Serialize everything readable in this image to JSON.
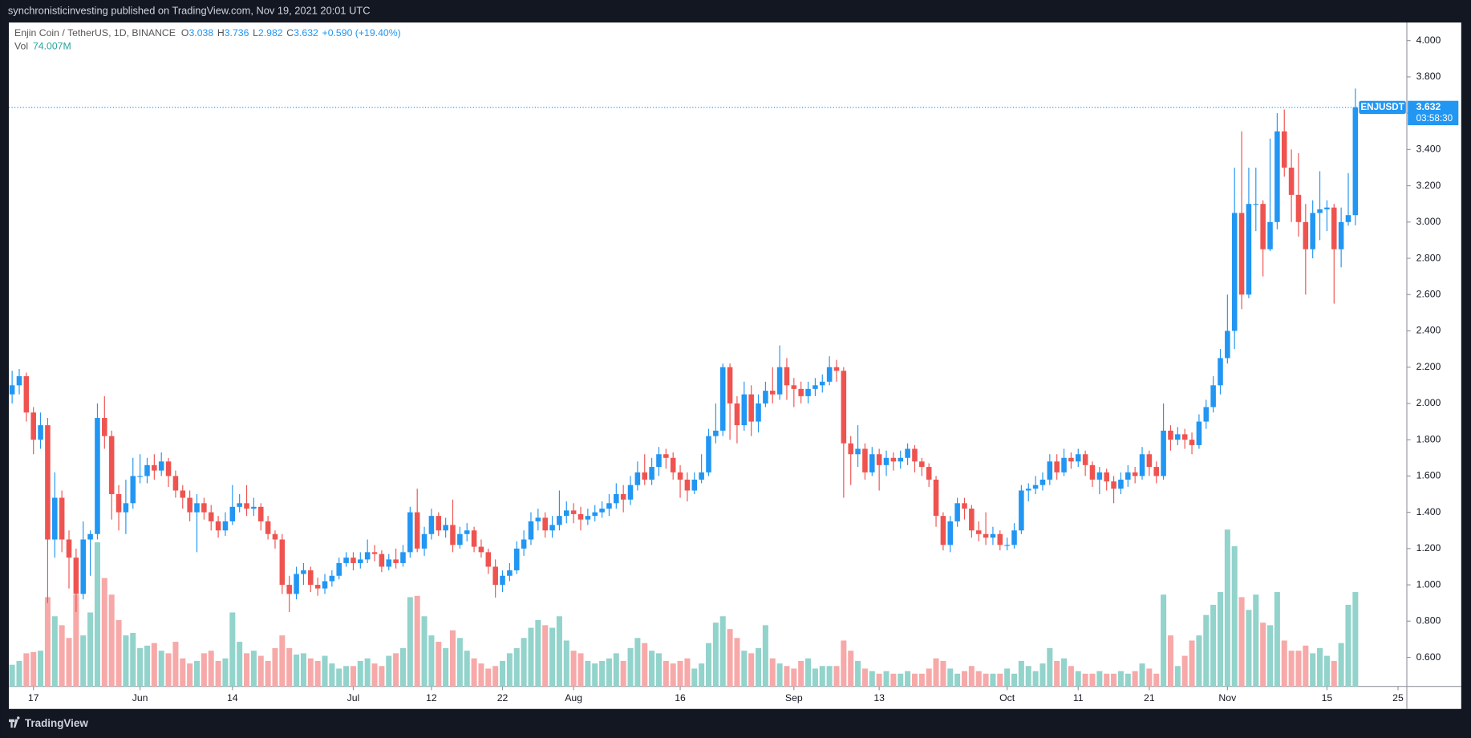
{
  "header": {
    "publisher": "synchronisticinvesting published on TradingView.com, Nov 19, 2021 20:01 UTC",
    "brand": "TradingView"
  },
  "chart_data": {
    "type": "candlestick",
    "legend": {
      "symbol": "Enjin Coin / TetherUS, 1D, BINANCE",
      "o_label": "O",
      "o": 3.038,
      "h_label": "H",
      "h": 3.736,
      "l_label": "L",
      "l": 2.982,
      "c_label": "C",
      "c": 3.632,
      "change": "+0.590 (+19.40%)",
      "vol_label": "Vol",
      "vol_value": "74.007M"
    },
    "ticker": "ENJUSDT",
    "countdown": "03:58:30",
    "up_color": "#2196f3",
    "down_color": "#ef5350",
    "vol_up_color": "#92d3cb",
    "vol_down_color": "#f6a9a8",
    "ylim": [
      0.44,
      4.1
    ],
    "yticks": [
      {
        "value": 0.6,
        "label": "0.600"
      },
      {
        "value": 0.8,
        "label": "0.800"
      },
      {
        "value": 1.0,
        "label": "1.000"
      },
      {
        "value": 1.2,
        "label": "1.200"
      },
      {
        "value": 1.4,
        "label": "1.400"
      },
      {
        "value": 1.6,
        "label": "1.600"
      },
      {
        "value": 1.8,
        "label": "1.800"
      },
      {
        "value": 2.0,
        "label": "2.000"
      },
      {
        "value": 2.2,
        "label": "2.200"
      },
      {
        "value": 2.4,
        "label": "2.400"
      },
      {
        "value": 2.6,
        "label": "2.600"
      },
      {
        "value": 2.8,
        "label": "2.800"
      },
      {
        "value": 3.0,
        "label": "3.000"
      },
      {
        "value": 3.2,
        "label": "3.200"
      },
      {
        "value": 3.4,
        "label": "3.400"
      },
      {
        "value": 3.6,
        "label": "3.600"
      },
      {
        "value": 3.8,
        "label": "3.800"
      },
      {
        "value": 4.0,
        "label": "4.000"
      }
    ],
    "xticks": [
      {
        "value": "May 17",
        "label": "17"
      },
      {
        "value": "Jun 1",
        "label": "Jun"
      },
      {
        "value": "Jun 14",
        "label": "14"
      },
      {
        "value": "Jul 1",
        "label": "Jul"
      },
      {
        "value": "Jul 12",
        "label": "12"
      },
      {
        "value": "Jul 22",
        "label": "22"
      },
      {
        "value": "Aug 1",
        "label": "Aug"
      },
      {
        "value": "Aug 16",
        "label": "16"
      },
      {
        "value": "Sep 1",
        "label": "Sep"
      },
      {
        "value": "Sep 13",
        "label": "13"
      },
      {
        "value": "Oct 1",
        "label": "Oct"
      },
      {
        "value": "Oct 11",
        "label": "11"
      },
      {
        "value": "Oct 21",
        "label": "21"
      },
      {
        "value": "Nov 1",
        "label": "Nov"
      },
      {
        "value": "Nov 15",
        "label": "15"
      },
      {
        "value": "Nov 25",
        "label": "25"
      }
    ],
    "x": [
      "May 14",
      "May 15",
      "May 16",
      "May 17",
      "May 18",
      "May 19",
      "May 20",
      "May 21",
      "May 22",
      "May 23",
      "May 24",
      "May 25",
      "May 26",
      "May 27",
      "May 28",
      "May 29",
      "May 30",
      "May 31",
      "Jun 1",
      "Jun 2",
      "Jun 3",
      "Jun 4",
      "Jun 5",
      "Jun 6",
      "Jun 7",
      "Jun 8",
      "Jun 9",
      "Jun 10",
      "Jun 11",
      "Jun 12",
      "Jun 13",
      "Jun 14",
      "Jun 15",
      "Jun 16",
      "Jun 17",
      "Jun 18",
      "Jun 19",
      "Jun 20",
      "Jun 21",
      "Jun 22",
      "Jun 23",
      "Jun 24",
      "Jun 25",
      "Jun 26",
      "Jun 27",
      "Jun 28",
      "Jun 29",
      "Jun 30",
      "Jul 1",
      "Jul 2",
      "Jul 3",
      "Jul 4",
      "Jul 5",
      "Jul 6",
      "Jul 7",
      "Jul 8",
      "Jul 9",
      "Jul 10",
      "Jul 11",
      "Jul 12",
      "Jul 13",
      "Jul 14",
      "Jul 15",
      "Jul 16",
      "Jul 17",
      "Jul 18",
      "Jul 19",
      "Jul 20",
      "Jul 21",
      "Jul 22",
      "Jul 23",
      "Jul 24",
      "Jul 25",
      "Jul 26",
      "Jul 27",
      "Jul 28",
      "Jul 29",
      "Jul 30",
      "Jul 31",
      "Aug 1",
      "Aug 2",
      "Aug 3",
      "Aug 4",
      "Aug 5",
      "Aug 6",
      "Aug 7",
      "Aug 8",
      "Aug 9",
      "Aug 10",
      "Aug 11",
      "Aug 12",
      "Aug 13",
      "Aug 14",
      "Aug 15",
      "Aug 16",
      "Aug 17",
      "Aug 18",
      "Aug 19",
      "Aug 20",
      "Aug 21",
      "Aug 22",
      "Aug 23",
      "Aug 24",
      "Aug 25",
      "Aug 26",
      "Aug 27",
      "Aug 28",
      "Aug 29",
      "Aug 30",
      "Aug 31",
      "Sep 1",
      "Sep 2",
      "Sep 3",
      "Sep 4",
      "Sep 5",
      "Sep 6",
      "Sep 7",
      "Sep 8",
      "Sep 9",
      "Sep 10",
      "Sep 11",
      "Sep 12",
      "Sep 13",
      "Sep 14",
      "Sep 15",
      "Sep 16",
      "Sep 17",
      "Sep 18",
      "Sep 19",
      "Sep 20",
      "Sep 21",
      "Sep 22",
      "Sep 23",
      "Sep 24",
      "Sep 25",
      "Sep 26",
      "Sep 27",
      "Sep 28",
      "Sep 29",
      "Sep 30",
      "Oct 1",
      "Oct 2",
      "Oct 3",
      "Oct 4",
      "Oct 5",
      "Oct 6",
      "Oct 7",
      "Oct 8",
      "Oct 9",
      "Oct 10",
      "Oct 11",
      "Oct 12",
      "Oct 13",
      "Oct 14",
      "Oct 15",
      "Oct 16",
      "Oct 17",
      "Oct 18",
      "Oct 19",
      "Oct 20",
      "Oct 21",
      "Oct 22",
      "Oct 23",
      "Oct 24",
      "Oct 25",
      "Oct 26",
      "Oct 27",
      "Oct 28",
      "Oct 29",
      "Oct 30",
      "Oct 31",
      "Nov 1",
      "Nov 2",
      "Nov 3",
      "Nov 4",
      "Nov 5",
      "Nov 6",
      "Nov 7",
      "Nov 8",
      "Nov 9",
      "Nov 10",
      "Nov 11",
      "Nov 12",
      "Nov 13",
      "Nov 14",
      "Nov 15",
      "Nov 16",
      "Nov 17",
      "Nov 18",
      "Nov 19"
    ],
    "open": [
      2.05,
      2.1,
      2.15,
      1.95,
      1.8,
      1.88,
      1.25,
      1.48,
      1.25,
      1.15,
      0.95,
      1.25,
      1.28,
      1.92,
      1.82,
      1.5,
      1.4,
      1.45,
      1.6,
      1.6,
      1.66,
      1.63,
      1.68,
      1.6,
      1.52,
      1.48,
      1.4,
      1.45,
      1.4,
      1.35,
      1.3,
      1.35,
      1.43,
      1.45,
      1.42,
      1.43,
      1.35,
      1.28,
      1.25,
      1.0,
      0.95,
      1.06,
      1.08,
      1.0,
      0.98,
      1.02,
      1.05,
      1.12,
      1.15,
      1.12,
      1.14,
      1.18,
      1.17,
      1.1,
      1.14,
      1.12,
      1.18,
      1.4,
      1.2,
      1.28,
      1.38,
      1.3,
      1.33,
      1.22,
      1.28,
      1.3,
      1.21,
      1.18,
      1.1,
      1.0,
      1.05,
      1.08,
      1.2,
      1.25,
      1.35,
      1.37,
      1.3,
      1.33,
      1.38,
      1.41,
      1.39,
      1.36,
      1.38,
      1.4,
      1.42,
      1.45,
      1.5,
      1.47,
      1.55,
      1.62,
      1.58,
      1.65,
      1.72,
      1.7,
      1.62,
      1.58,
      1.52,
      1.58,
      1.62,
      1.82,
      1.85,
      2.2,
      2.0,
      1.88,
      2.05,
      1.9,
      2.0,
      2.07,
      2.05,
      2.2,
      2.1,
      2.08,
      2.04,
      2.08,
      2.1,
      2.12,
      2.2,
      2.18,
      1.78,
      1.72,
      1.75,
      1.62,
      1.72,
      1.66,
      1.7,
      1.68,
      1.7,
      1.75,
      1.68,
      1.65,
      1.58,
      1.38,
      1.22,
      1.35,
      1.45,
      1.42,
      1.3,
      1.28,
      1.26,
      1.28,
      1.22,
      1.22,
      1.3,
      1.52,
      1.53,
      1.55,
      1.58,
      1.68,
      1.62,
      1.7,
      1.68,
      1.72,
      1.66,
      1.58,
      1.62,
      1.57,
      1.53,
      1.58,
      1.62,
      1.6,
      1.72,
      1.65,
      1.6,
      1.85,
      1.8,
      1.83,
      1.8,
      1.77,
      1.9,
      1.98,
      2.1,
      2.25,
      2.4,
      3.05,
      2.6,
      3.1,
      3.1,
      2.85,
      3.0,
      3.5,
      3.3,
      3.15,
      3.0,
      2.85,
      3.05,
      3.07,
      3.08,
      2.85,
      3.0,
      3.038
    ],
    "high": [
      2.18,
      2.19,
      2.17,
      1.98,
      1.95,
      1.92,
      1.62,
      1.52,
      1.3,
      1.2,
      1.35,
      1.3,
      2.0,
      2.04,
      1.85,
      1.55,
      1.58,
      1.7,
      1.72,
      1.7,
      1.72,
      1.73,
      1.7,
      1.63,
      1.55,
      1.52,
      1.5,
      1.48,
      1.44,
      1.38,
      1.4,
      1.55,
      1.5,
      1.55,
      1.48,
      1.45,
      1.38,
      1.3,
      1.28,
      1.05,
      1.1,
      1.12,
      1.1,
      1.04,
      1.06,
      1.08,
      1.15,
      1.18,
      1.18,
      1.18,
      1.25,
      1.22,
      1.19,
      1.17,
      1.2,
      1.22,
      1.43,
      1.53,
      1.32,
      1.42,
      1.4,
      1.37,
      1.47,
      1.32,
      1.34,
      1.32,
      1.25,
      1.2,
      1.14,
      1.08,
      1.12,
      1.24,
      1.3,
      1.4,
      1.42,
      1.4,
      1.38,
      1.52,
      1.46,
      1.45,
      1.43,
      1.42,
      1.44,
      1.46,
      1.5,
      1.56,
      1.55,
      1.6,
      1.68,
      1.72,
      1.7,
      1.76,
      1.75,
      1.73,
      1.66,
      1.62,
      1.62,
      1.72,
      1.86,
      2.0,
      2.22,
      2.22,
      2.04,
      2.12,
      2.1,
      2.05,
      2.12,
      2.2,
      2.32,
      2.25,
      2.14,
      2.12,
      2.12,
      2.14,
      2.16,
      2.26,
      2.24,
      2.2,
      1.82,
      1.88,
      1.78,
      1.76,
      1.75,
      1.74,
      1.73,
      1.74,
      1.78,
      1.77,
      1.7,
      1.67,
      1.6,
      1.4,
      1.38,
      1.48,
      1.48,
      1.44,
      1.35,
      1.4,
      1.32,
      1.3,
      1.26,
      1.34,
      1.55,
      1.56,
      1.6,
      1.62,
      1.72,
      1.72,
      1.75,
      1.73,
      1.75,
      1.74,
      1.68,
      1.65,
      1.64,
      1.6,
      1.62,
      1.66,
      1.65,
      1.76,
      1.74,
      1.68,
      2.0,
      1.88,
      1.87,
      1.86,
      1.84,
      1.94,
      2.02,
      2.15,
      2.3,
      2.6,
      3.3,
      3.5,
      3.3,
      3.3,
      3.12,
      3.46,
      3.6,
      3.62,
      3.4,
      3.38,
      3.1,
      3.12,
      3.28,
      3.12,
      3.1,
      3.08,
      3.27,
      3.736
    ],
    "low": [
      2.0,
      2.05,
      1.9,
      1.72,
      1.75,
      0.9,
      1.15,
      1.18,
      0.98,
      0.85,
      0.92,
      1.05,
      1.25,
      1.75,
      1.36,
      1.3,
      1.28,
      1.42,
      1.56,
      1.56,
      1.58,
      1.6,
      1.54,
      1.48,
      1.42,
      1.35,
      1.18,
      1.36,
      1.3,
      1.26,
      1.27,
      1.33,
      1.4,
      1.38,
      1.38,
      1.3,
      1.25,
      1.2,
      0.95,
      0.85,
      0.92,
      1.0,
      0.96,
      0.94,
      0.95,
      0.99,
      1.03,
      1.1,
      1.08,
      1.09,
      1.12,
      1.13,
      1.07,
      1.08,
      1.09,
      1.1,
      1.15,
      1.18,
      1.16,
      1.25,
      1.27,
      1.26,
      1.18,
      1.2,
      1.24,
      1.18,
      1.15,
      1.06,
      0.93,
      0.96,
      1.02,
      1.06,
      1.16,
      1.22,
      1.3,
      1.26,
      1.26,
      1.3,
      1.34,
      1.34,
      1.3,
      1.33,
      1.35,
      1.37,
      1.38,
      1.42,
      1.4,
      1.44,
      1.52,
      1.55,
      1.55,
      1.6,
      1.64,
      1.58,
      1.48,
      1.46,
      1.5,
      1.56,
      1.6,
      1.78,
      1.82,
      1.8,
      1.78,
      1.85,
      1.82,
      1.84,
      1.98,
      2.0,
      2.02,
      2.02,
      1.98,
      2.0,
      2.0,
      2.04,
      2.06,
      2.1,
      2.12,
      1.48,
      1.55,
      1.65,
      1.58,
      1.6,
      1.52,
      1.6,
      1.63,
      1.64,
      1.66,
      1.62,
      1.6,
      1.54,
      1.32,
      1.19,
      1.18,
      1.32,
      1.36,
      1.26,
      1.24,
      1.22,
      1.22,
      1.19,
      1.19,
      1.2,
      1.28,
      1.46,
      1.5,
      1.52,
      1.55,
      1.58,
      1.6,
      1.64,
      1.65,
      1.6,
      1.54,
      1.5,
      1.52,
      1.45,
      1.5,
      1.54,
      1.56,
      1.58,
      1.6,
      1.56,
      1.58,
      1.74,
      1.77,
      1.75,
      1.72,
      1.75,
      1.86,
      1.95,
      2.05,
      2.22,
      2.3,
      2.52,
      2.58,
      2.95,
      2.7,
      2.84,
      2.96,
      3.25,
      3.0,
      2.92,
      2.6,
      2.8,
      2.9,
      2.95,
      2.55,
      2.75,
      2.98,
      2.982
    ],
    "close": [
      2.1,
      2.15,
      1.95,
      1.8,
      1.88,
      1.25,
      1.48,
      1.25,
      1.15,
      0.95,
      1.25,
      1.28,
      1.92,
      1.82,
      1.5,
      1.4,
      1.45,
      1.6,
      1.6,
      1.66,
      1.63,
      1.68,
      1.6,
      1.52,
      1.48,
      1.4,
      1.45,
      1.4,
      1.35,
      1.3,
      1.35,
      1.43,
      1.45,
      1.42,
      1.43,
      1.35,
      1.28,
      1.25,
      1.0,
      0.95,
      1.06,
      1.08,
      1.0,
      0.98,
      1.02,
      1.05,
      1.12,
      1.15,
      1.12,
      1.14,
      1.18,
      1.17,
      1.1,
      1.14,
      1.12,
      1.18,
      1.4,
      1.2,
      1.28,
      1.38,
      1.3,
      1.33,
      1.22,
      1.28,
      1.3,
      1.21,
      1.18,
      1.1,
      1.0,
      1.05,
      1.08,
      1.2,
      1.25,
      1.35,
      1.37,
      1.3,
      1.33,
      1.38,
      1.41,
      1.39,
      1.36,
      1.38,
      1.4,
      1.42,
      1.45,
      1.5,
      1.47,
      1.55,
      1.62,
      1.58,
      1.65,
      1.72,
      1.7,
      1.62,
      1.58,
      1.52,
      1.58,
      1.62,
      1.82,
      1.85,
      2.2,
      2.0,
      1.88,
      2.05,
      1.9,
      2.0,
      2.07,
      2.05,
      2.2,
      2.1,
      2.08,
      2.04,
      2.08,
      2.1,
      2.12,
      2.2,
      2.18,
      1.78,
      1.72,
      1.75,
      1.62,
      1.72,
      1.66,
      1.7,
      1.68,
      1.7,
      1.75,
      1.68,
      1.65,
      1.58,
      1.38,
      1.22,
      1.35,
      1.45,
      1.42,
      1.3,
      1.28,
      1.26,
      1.28,
      1.22,
      1.22,
      1.3,
      1.52,
      1.53,
      1.55,
      1.58,
      1.68,
      1.62,
      1.7,
      1.68,
      1.72,
      1.66,
      1.58,
      1.62,
      1.57,
      1.53,
      1.58,
      1.62,
      1.6,
      1.72,
      1.65,
      1.6,
      1.85,
      1.8,
      1.83,
      1.8,
      1.77,
      1.9,
      1.98,
      2.1,
      2.25,
      2.4,
      3.05,
      2.6,
      3.1,
      3.1,
      2.85,
      3.0,
      3.5,
      3.3,
      3.15,
      3.0,
      2.85,
      3.05,
      3.07,
      3.08,
      2.85,
      3.0,
      3.038,
      3.632
    ],
    "volume": [
      17,
      20,
      26,
      27,
      28,
      70,
      55,
      48,
      38,
      72,
      40,
      58,
      113,
      85,
      72,
      52,
      40,
      42,
      30,
      32,
      34,
      28,
      26,
      35,
      22,
      18,
      20,
      26,
      28,
      20,
      22,
      58,
      35,
      26,
      28,
      24,
      20,
      30,
      40,
      30,
      25,
      26,
      22,
      20,
      24,
      18,
      14,
      16,
      16,
      20,
      22,
      18,
      16,
      24,
      26,
      30,
      70,
      71,
      55,
      40,
      35,
      30,
      44,
      38,
      28,
      22,
      18,
      14,
      16,
      20,
      26,
      30,
      38,
      46,
      52,
      48,
      46,
      55,
      36,
      28,
      26,
      20,
      18,
      20,
      22,
      26,
      20,
      30,
      38,
      34,
      28,
      26,
      20,
      18,
      20,
      22,
      14,
      18,
      34,
      50,
      55,
      45,
      38,
      28,
      26,
      30,
      48,
      22,
      18,
      16,
      14,
      20,
      22,
      14,
      16,
      16,
      16,
      36,
      28,
      20,
      14,
      12,
      10,
      12,
      10,
      10,
      12,
      10,
      10,
      14,
      22,
      20,
      14,
      10,
      12,
      16,
      12,
      10,
      10,
      10,
      14,
      10,
      20,
      16,
      12,
      18,
      30,
      20,
      22,
      16,
      12,
      10,
      10,
      12,
      10,
      10,
      12,
      10,
      12,
      18,
      14,
      10,
      72,
      40,
      16,
      24,
      36,
      40,
      56,
      64,
      74,
      123,
      110,
      70,
      60,
      72,
      50,
      48,
      74,
      36,
      28,
      28,
      32,
      26,
      30,
      24,
      20,
      34,
      64,
      74.007
    ]
  }
}
